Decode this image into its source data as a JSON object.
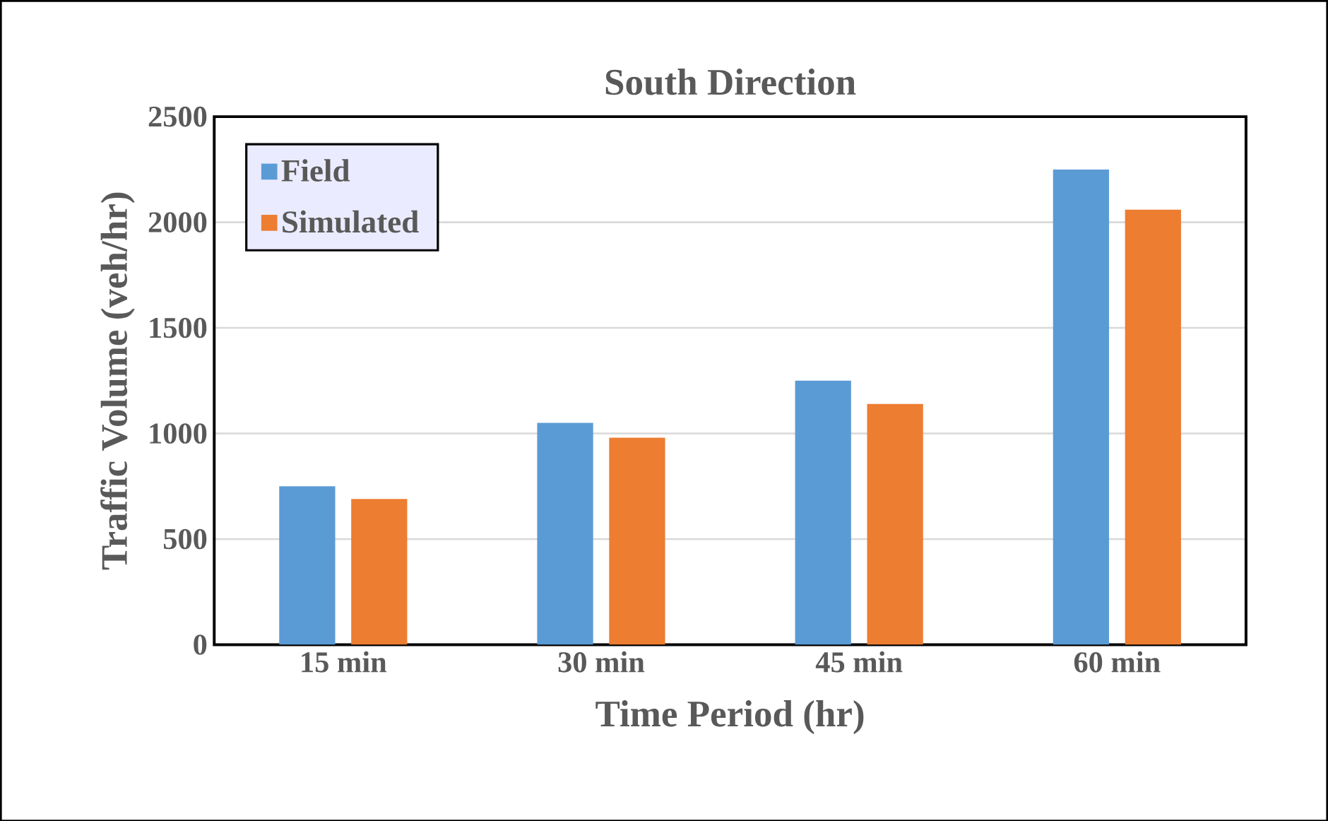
{
  "chart_data": {
    "type": "bar",
    "title": "South Direction",
    "xlabel": "Time Period (hr)",
    "ylabel": "Traffic Volume (veh/hr)",
    "categories": [
      "15 min",
      "30 min",
      "45 min",
      "60 min"
    ],
    "series": [
      {
        "name": "Field",
        "color": "#5b9bd5",
        "values": [
          750,
          1050,
          1250,
          2250
        ]
      },
      {
        "name": "Simulated",
        "color": "#ed7d31",
        "values": [
          690,
          980,
          1140,
          2060
        ]
      }
    ],
    "ylim": [
      0,
      2500
    ],
    "yticks": [
      0,
      500,
      1000,
      1500,
      2000,
      2500
    ],
    "grid": "y",
    "legend": "top left"
  }
}
